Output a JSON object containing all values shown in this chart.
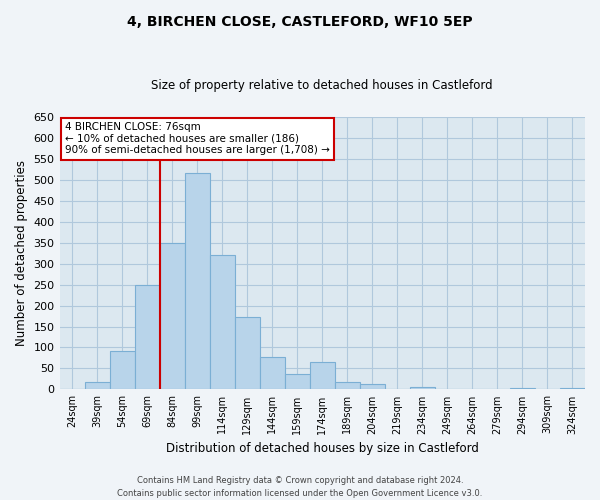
{
  "title": "4, BIRCHEN CLOSE, CASTLEFORD, WF10 5EP",
  "subtitle": "Size of property relative to detached houses in Castleford",
  "xlabel": "Distribution of detached houses by size in Castleford",
  "ylabel": "Number of detached properties",
  "categories": [
    "24sqm",
    "39sqm",
    "54sqm",
    "69sqm",
    "84sqm",
    "99sqm",
    "114sqm",
    "129sqm",
    "144sqm",
    "159sqm",
    "174sqm",
    "189sqm",
    "204sqm",
    "219sqm",
    "234sqm",
    "249sqm",
    "264sqm",
    "279sqm",
    "294sqm",
    "309sqm",
    "324sqm"
  ],
  "values": [
    0,
    17,
    92,
    248,
    348,
    515,
    320,
    173,
    77,
    37,
    65,
    17,
    13,
    0,
    5,
    0,
    0,
    0,
    3,
    0,
    3
  ],
  "bar_color": "#b8d4ea",
  "bar_edge_color": "#7bafd4",
  "vline_color": "#cc0000",
  "annotation_text": "4 BIRCHEN CLOSE: 76sqm\n← 10% of detached houses are smaller (186)\n90% of semi-detached houses are larger (1,708) →",
  "annotation_box_edge": "#cc0000",
  "ylim": [
    0,
    650
  ],
  "yticks": [
    0,
    50,
    100,
    150,
    200,
    250,
    300,
    350,
    400,
    450,
    500,
    550,
    600,
    650
  ],
  "footnote1": "Contains HM Land Registry data © Crown copyright and database right 2024.",
  "footnote2": "Contains public sector information licensed under the Open Government Licence v3.0.",
  "bg_color": "#f0f4f8",
  "plot_bg_color": "#dce8f0",
  "grid_color": "#b0c8dc"
}
